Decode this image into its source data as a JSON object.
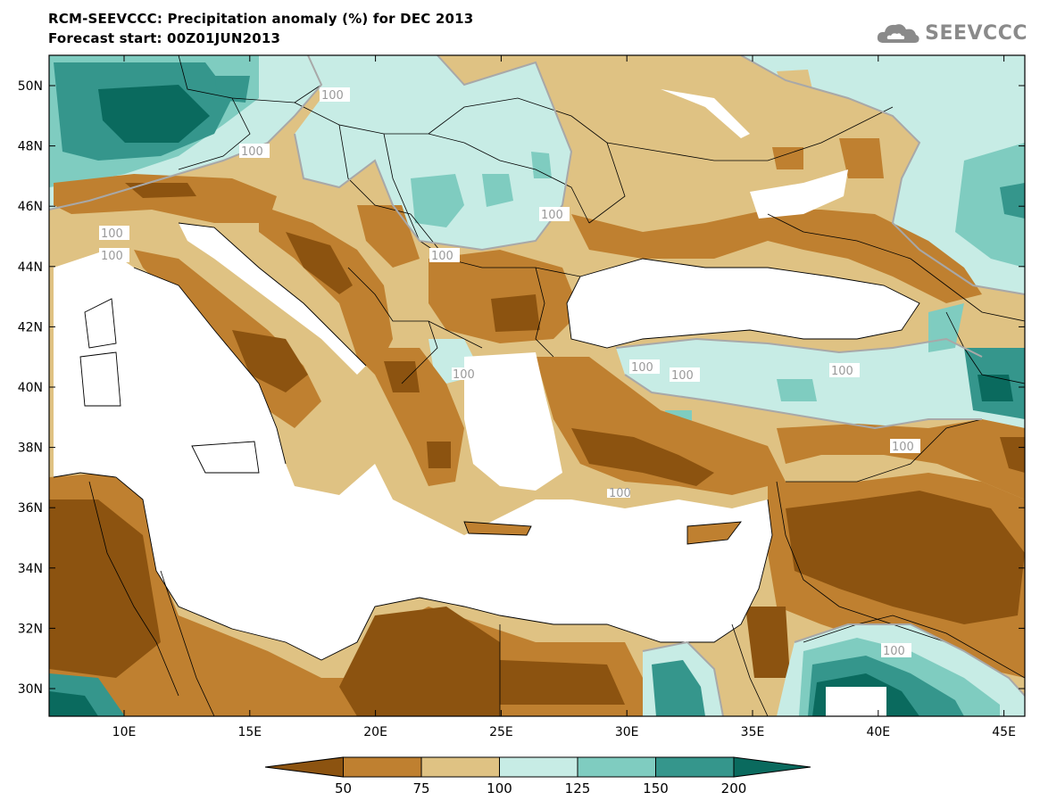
{
  "header": {
    "title": "RCM-SEEVCCC: Precipitation anomaly (%) for DEC 2013",
    "subtitle": "Forecast start: 00Z01JUN2013"
  },
  "logo": {
    "text": "SEEVCCC",
    "icon": "cloud-icon"
  },
  "axes": {
    "lon_ticks": [
      "10E",
      "15E",
      "20E",
      "25E",
      "30E",
      "35E",
      "40E",
      "45E"
    ],
    "lat_ticks": [
      "50N",
      "48N",
      "46N",
      "44N",
      "42N",
      "40N",
      "38N",
      "36N",
      "34N",
      "32N",
      "30N"
    ]
  },
  "contour_labels": [
    "100",
    "100",
    "100",
    "100",
    "100",
    "100",
    "100",
    "100",
    "100",
    "100",
    "100",
    "100",
    "100"
  ],
  "colorbar": {
    "labels": [
      "50",
      "75",
      "100",
      "125",
      "150",
      "200"
    ],
    "colors": [
      "#8c5310",
      "#bf8030",
      "#dfc283",
      "#c7ece5",
      "#7fccc0",
      "#35968c",
      "#0a6a5e"
    ]
  },
  "colors": {
    "land_dry_strong": "#8c5310",
    "land_dry": "#bf8030",
    "land_dry_light": "#dfc283",
    "wet_light": "#c7ece5",
    "wet": "#7fccc0",
    "wet_strong": "#35968c",
    "wet_very_strong": "#0a6a5e",
    "sea": "#ffffff"
  }
}
